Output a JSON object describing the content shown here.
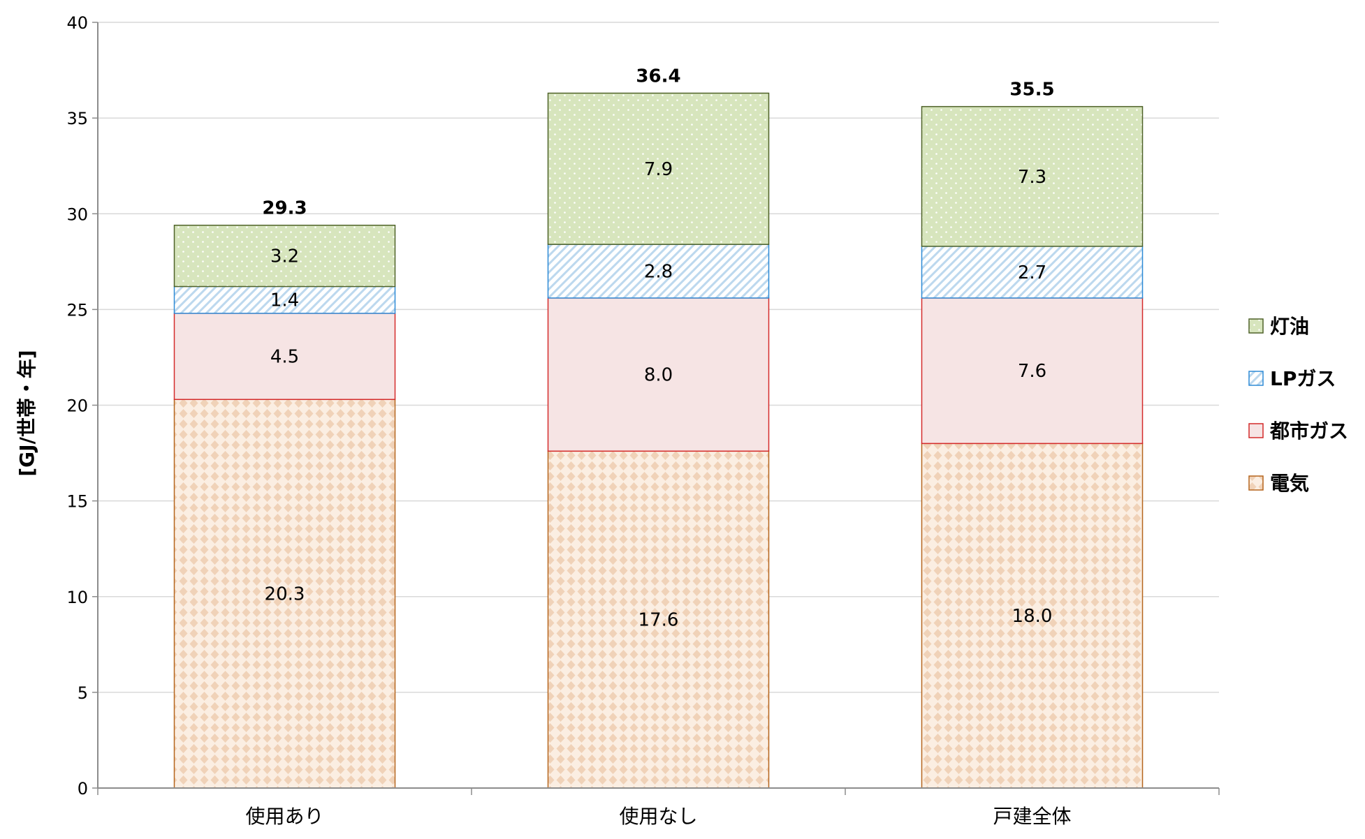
{
  "chart_data": {
    "type": "bar",
    "stacked": true,
    "title": "",
    "xlabel": "",
    "ylabel": "[GJ/世帯・年]",
    "ylim": [
      0,
      40
    ],
    "yticks": [
      0,
      5,
      10,
      15,
      20,
      25,
      30,
      35,
      40
    ],
    "grid": true,
    "legend_position": "right",
    "categories": [
      "使用あり",
      "使用なし",
      "戸建全体"
    ],
    "series": [
      {
        "name": "電気",
        "values": [
          20.3,
          17.6,
          18.0
        ],
        "labels": [
          "20.3",
          "17.6",
          "18.0"
        ],
        "fill": "#fbeee2",
        "pattern": "#f0d2b8",
        "stroke": "#b5651d"
      },
      {
        "name": "都市ガス",
        "values": [
          4.5,
          8.0,
          7.6
        ],
        "labels": [
          "4.5",
          "8.0",
          "7.6"
        ],
        "fill": "#f6e4e4",
        "pattern": "",
        "stroke": "#d42a2a"
      },
      {
        "name": "LPガス",
        "values": [
          1.4,
          2.8,
          2.7
        ],
        "labels": [
          "1.4",
          "2.8",
          "2.7"
        ],
        "fill": "#ffffff",
        "pattern": "#bcd8ee",
        "stroke": "#2d8ad6"
      },
      {
        "name": "灯油",
        "values": [
          3.2,
          7.9,
          7.3
        ],
        "labels": [
          "3.2",
          "7.9",
          "7.3"
        ],
        "fill": "#d7e5bd",
        "pattern": "#ffffff",
        "stroke": "#4f6228"
      }
    ],
    "totals": [
      "29.3",
      "36.4",
      "35.5"
    ],
    "legend_order": [
      "灯油",
      "LPガス",
      "都市ガス",
      "電気"
    ],
    "colors": {
      "grid": "#d9d9d9",
      "axis": "#8c8c8c"
    }
  }
}
